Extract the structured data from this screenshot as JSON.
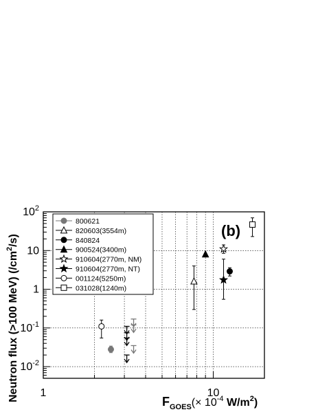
{
  "chart_data": {
    "type": "scatter",
    "panel_label": "(b)",
    "title": "",
    "xlabel_main": "F",
    "xlabel_sub": "GOES",
    "xlabel_rest": "(× 10",
    "xlabel_exp": "-4",
    "xlabel_unit": " W/m",
    "xlabel_unit_exp": "2",
    "xlabel_close": ")",
    "ylabel": "Neutron flux (>100 MeV) (/cm",
    "ylabel_exp": "2",
    "ylabel_close": "/s)",
    "xscale": "log",
    "yscale": "log",
    "xlim": [
      1,
      20
    ],
    "ylim": [
      0.005,
      100
    ],
    "x_ticks": [
      {
        "value": 1,
        "label": "1"
      },
      {
        "value": 10,
        "label": "10"
      }
    ],
    "y_ticks": [
      {
        "value": 0.01,
        "base": "10",
        "exp": "-2"
      },
      {
        "value": 0.1,
        "base": "10",
        "exp": "-1"
      },
      {
        "value": 1,
        "base": "1",
        "exp": ""
      },
      {
        "value": 10,
        "base": "10",
        "exp": ""
      },
      {
        "value": 100,
        "base": "10",
        "exp": "2"
      }
    ],
    "grid": true,
    "legend_position": "top-left",
    "series": [
      {
        "name": "800621",
        "marker": "circle-filled",
        "color": "#777777",
        "points": [
          {
            "x": 2.5,
            "y": 0.028,
            "lo": 0.023,
            "hi": 0.034
          }
        ]
      },
      {
        "name": "820603(3554m)",
        "marker": "triangle-open",
        "color": "#000000",
        "points": [
          {
            "x": 7.7,
            "y": 1.6,
            "lo": 0.3,
            "hi": 4.0
          }
        ]
      },
      {
        "name": "840824",
        "marker": "circle-filled",
        "color": "#000000",
        "points": [
          {
            "x": 12.5,
            "y": 2.9,
            "lo": 2.2,
            "hi": 3.6
          }
        ]
      },
      {
        "name": "900524(3400m)",
        "marker": "triangle-filled",
        "color": "#000000",
        "points": [
          {
            "x": 9.0,
            "y": 8.0
          }
        ]
      },
      {
        "name": "910604(2770m, NM)",
        "marker": "star-open",
        "color": "#000000",
        "points": [
          {
            "x": 11.5,
            "y": 11.0,
            "lo": 8.5,
            "hi": 14.0
          }
        ]
      },
      {
        "name": "910604(2770m, NT)",
        "marker": "star-filled",
        "color": "#000000",
        "points": [
          {
            "x": 11.5,
            "y": 1.75,
            "lo": 0.55,
            "hi": 6.0
          }
        ]
      },
      {
        "name": "001124(5250m)",
        "marker": "circle-open",
        "color": "#000000",
        "points": [
          {
            "x": 2.2,
            "y": 0.11,
            "lo": 0.055,
            "hi": 0.16
          }
        ]
      },
      {
        "name": "031028(1240m)",
        "marker": "square-open",
        "color": "#000000",
        "points": [
          {
            "x": 17.0,
            "y": 47,
            "lo": 23,
            "hi": 70
          }
        ]
      }
    ],
    "upper_limits": [
      {
        "x": 3.1,
        "y": 0.11,
        "color": "#000000"
      },
      {
        "x": 3.1,
        "y": 0.075,
        "color": "#000000"
      },
      {
        "x": 3.1,
        "y": 0.055,
        "color": "#000000"
      },
      {
        "x": 3.1,
        "y": 0.02,
        "color": "#000000"
      },
      {
        "x": 3.4,
        "y": 0.17,
        "color": "#777777"
      },
      {
        "x": 3.4,
        "y": 0.12,
        "color": "#777777"
      },
      {
        "x": 3.4,
        "y": 0.035,
        "color": "#777777"
      }
    ]
  }
}
